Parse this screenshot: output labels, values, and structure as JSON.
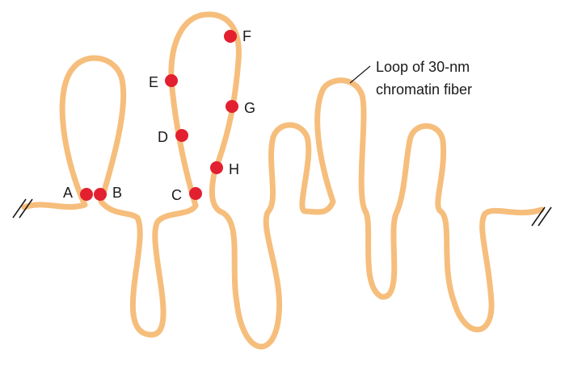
{
  "colors": {
    "fiber": "#F6BE7C",
    "marker": "#E2202F",
    "text": "#1a1a1a"
  },
  "callout": {
    "line1": "Loop of 30-nm",
    "line2": "chromatin fiber"
  },
  "sites": [
    {
      "id": "A",
      "label": "A"
    },
    {
      "id": "B",
      "label": "B"
    },
    {
      "id": "C",
      "label": "C"
    },
    {
      "id": "D",
      "label": "D"
    },
    {
      "id": "E",
      "label": "E"
    },
    {
      "id": "F",
      "label": "F"
    },
    {
      "id": "G",
      "label": "G"
    },
    {
      "id": "H",
      "label": "H"
    }
  ]
}
